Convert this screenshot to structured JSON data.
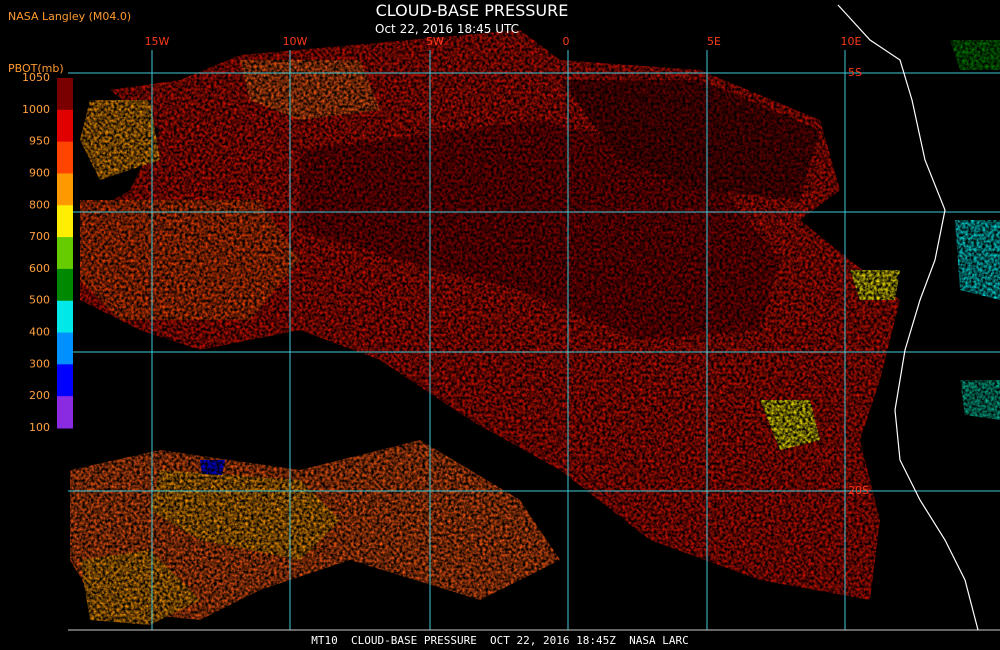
{
  "header": {
    "title": "CLOUD-BASE PRESSURE",
    "subtitle": "Oct 22, 2016 18:45 UTC",
    "source": "NASA Langley (M04.0)"
  },
  "colorbar": {
    "label": "PBOT(mb)",
    "ticks": [
      1050,
      1000,
      950,
      900,
      800,
      700,
      600,
      500,
      400,
      300,
      200,
      100
    ],
    "colors": [
      "#7a0000",
      "#e00000",
      "#ff4400",
      "#ff9900",
      "#ffee00",
      "#66cc00",
      "#008800",
      "#00e8e8",
      "#0090ff",
      "#0000ff",
      "#8a2be2"
    ]
  },
  "grid": {
    "lon_labels": [
      "15W",
      "10W",
      "5W",
      "0",
      "5E",
      "10E"
    ],
    "lat_labels": [
      "5S",
      "20S"
    ]
  },
  "footer": "MT10  CLOUD-BASE PRESSURE  OCT 22, 2016 18:45Z  NASA LARC"
}
